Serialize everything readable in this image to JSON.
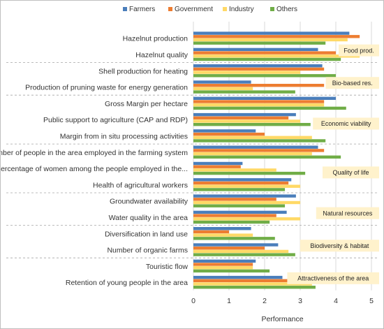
{
  "chart_data": {
    "type": "bar",
    "orientation": "horizontal",
    "xlabel": "Performance",
    "xlim": [
      0,
      5
    ],
    "xticks": [
      "0",
      "1",
      "2",
      "3",
      "4",
      "5"
    ],
    "grid": "vertical",
    "legend_position": "top",
    "categories": [
      "Hazelnut production",
      "Hazelnut quality",
      "Shell production for heating",
      "Production of pruning waste for energy generation",
      "Gross Margin per hectare",
      "Public support to agriculture (CAP and RDP)",
      "Margin from in situ processing activities",
      "Number of people in the area employed in the farming system",
      "Percentage of women among the people employed in the...",
      "Health of agricultural workers",
      "Groundwater availability",
      "Water quality in the area",
      "Diversification in land use",
      "Number of organic farms",
      "Touristic flow",
      "Retention of young people in the area"
    ],
    "series": [
      {
        "name": "Farmers",
        "color": "#4a7ebb",
        "values": [
          4.38,
          3.5,
          3.62,
          1.62,
          4.0,
          2.88,
          1.75,
          3.5,
          1.38,
          2.75,
          2.88,
          2.62,
          1.62,
          2.38,
          1.75,
          2.5
        ]
      },
      {
        "name": "Government",
        "color": "#ed7d31",
        "values": [
          4.67,
          4.0,
          3.67,
          3.67,
          3.67,
          2.67,
          2.0,
          3.67,
          1.33,
          2.67,
          2.33,
          2.33,
          1.0,
          2.0,
          1.67,
          3.0
        ]
      },
      {
        "name": "Industry",
        "color": "#ffd966",
        "values": [
          4.33,
          4.67,
          3.0,
          1.67,
          3.67,
          3.0,
          3.33,
          3.33,
          2.33,
          3.0,
          3.0,
          3.0,
          1.67,
          2.67,
          1.67,
          3.33
        ]
      },
      {
        "name": "Others",
        "color": "#70ad47",
        "values": [
          3.71,
          4.14,
          4.0,
          2.86,
          4.29,
          3.29,
          3.71,
          4.14,
          3.14,
          2.57,
          2.57,
          2.14,
          2.29,
          2.86,
          2.14,
          3.43
        ]
      }
    ],
    "groups": [
      {
        "label": "Food prod.",
        "first": 0,
        "last": 1
      },
      {
        "label": "Bio-based res.",
        "first": 2,
        "last": 3
      },
      {
        "label": "Economic viability",
        "first": 4,
        "last": 6
      },
      {
        "label": "Quality of life",
        "first": 7,
        "last": 9
      },
      {
        "label": "Natural resources",
        "first": 10,
        "last": 11
      },
      {
        "label": "Biodiversity & habitat",
        "first": 12,
        "last": 13
      },
      {
        "label": "Attractiveness of the area",
        "first": 14,
        "last": 15
      }
    ],
    "group_box_color": "#fff2cc"
  }
}
